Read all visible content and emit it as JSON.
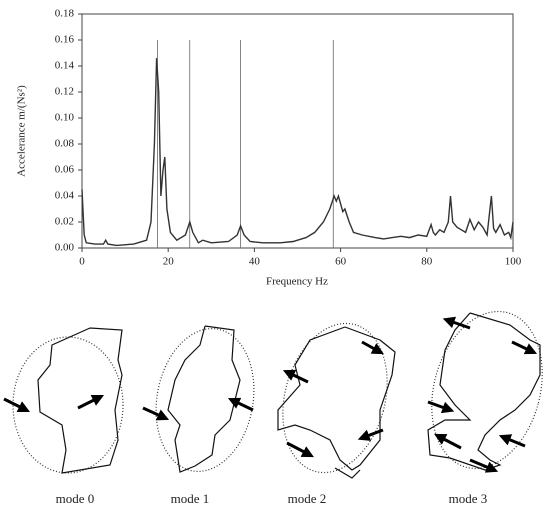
{
  "chart_data": {
    "type": "line",
    "y_label": "Accelerance m/(Ns²)",
    "x_label": "Frequency Hz",
    "color": "#333333",
    "xlim": [
      0,
      100
    ],
    "xticks": [
      0,
      20,
      40,
      60,
      80,
      100
    ],
    "ylim": [
      0,
      0.18
    ],
    "yticks": [
      {
        "value": 0,
        "label": "0.00"
      },
      0.02,
      0.04,
      0.06,
      0.08,
      {
        "value": 0.1,
        "label": "0.10"
      },
      0.12,
      0.14,
      0.16,
      0.18
    ],
    "reference_lines": [
      17.5,
      25,
      36.8,
      58.3
    ],
    "x": [
      0,
      0.5,
      1,
      3,
      5,
      5.5,
      6,
      8,
      12,
      15,
      16,
      16.8,
      17.3,
      17.8,
      18.3,
      18.8,
      19.2,
      19.7,
      20.5,
      22,
      24,
      25,
      25.7,
      27,
      28,
      30,
      34,
      36,
      36.8,
      37.6,
      39,
      42,
      46,
      49,
      50,
      52,
      54,
      56,
      57.5,
      58.5,
      59,
      59.5,
      60,
      60.5,
      61,
      62,
      63,
      65,
      68,
      70,
      72,
      74,
      76,
      78,
      80,
      81,
      81.5,
      82,
      83,
      84,
      85,
      85.5,
      86,
      87,
      88,
      89,
      90,
      91,
      92,
      93,
      94,
      95,
      95.5,
      96,
      97,
      98,
      99,
      99.5,
      100
    ],
    "y": [
      0.045,
      0.01,
      0.004,
      0.003,
      0.003,
      0.006,
      0.003,
      0.002,
      0.003,
      0.006,
      0.02,
      0.08,
      0.146,
      0.12,
      0.04,
      0.06,
      0.07,
      0.03,
      0.012,
      0.006,
      0.01,
      0.02,
      0.012,
      0.004,
      0.006,
      0.004,
      0.005,
      0.01,
      0.017,
      0.01,
      0.005,
      0.004,
      0.004,
      0.005,
      0.006,
      0.008,
      0.012,
      0.02,
      0.03,
      0.04,
      0.036,
      0.04,
      0.034,
      0.028,
      0.03,
      0.02,
      0.012,
      0.01,
      0.008,
      0.007,
      0.008,
      0.009,
      0.008,
      0.01,
      0.009,
      0.018,
      0.012,
      0.01,
      0.014,
      0.012,
      0.02,
      0.04,
      0.02,
      0.016,
      0.014,
      0.012,
      0.022,
      0.014,
      0.02,
      0.016,
      0.01,
      0.04,
      0.015,
      0.012,
      0.018,
      0.01,
      0.012,
      0.008,
      0.02
    ]
  },
  "modes": [
    "mode 0",
    "mode 1",
    "mode 2",
    "mode 3"
  ]
}
